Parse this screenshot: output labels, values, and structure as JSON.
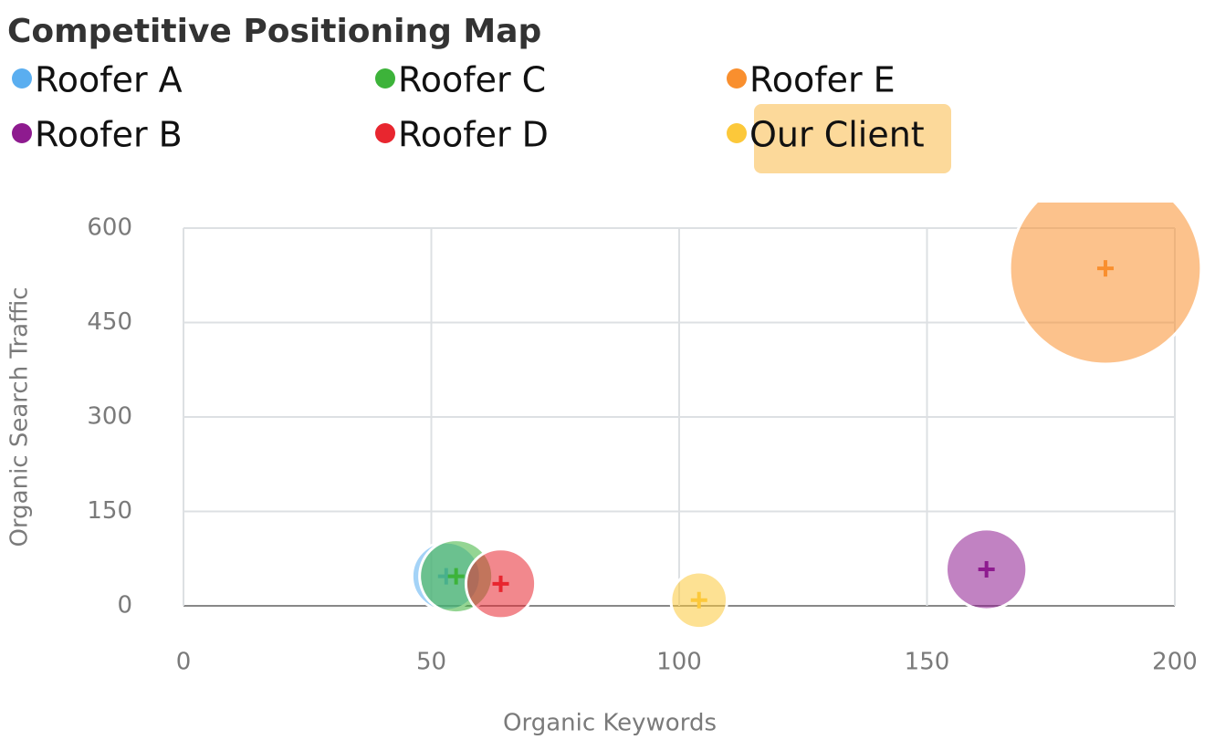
{
  "chart_data": {
    "type": "bubble",
    "title": "Competitive Positioning Map",
    "x_label": "Organic Keywords",
    "y_label": "Organic Search Traffic",
    "xlim": [
      0,
      200
    ],
    "xticks": [
      0,
      50,
      100,
      150,
      200
    ],
    "ylim": [
      0,
      600
    ],
    "yticks": [
      0,
      150,
      300,
      450,
      600
    ],
    "grid": true,
    "series": [
      {
        "name": "Roofer A",
        "color": "#5aaef0",
        "x": 53,
        "y": 47,
        "size": 1400
      },
      {
        "name": "Roofer B",
        "color": "#8e1b8f",
        "x": 162,
        "y": 58,
        "size": 1950
      },
      {
        "name": "Roofer C",
        "color": "#3db33a",
        "x": 55,
        "y": 47,
        "size": 1600
      },
      {
        "name": "Roofer D",
        "color": "#e8262f",
        "x": 64,
        "y": 35,
        "size": 1450
      },
      {
        "name": "Roofer E",
        "color": "#f98f2e",
        "x": 186,
        "y": 536,
        "size": 11000
      },
      {
        "name": "Our Client",
        "color": "#fcc83a",
        "x": 104,
        "y": 9,
        "size": 950,
        "highlight": true
      }
    ]
  }
}
